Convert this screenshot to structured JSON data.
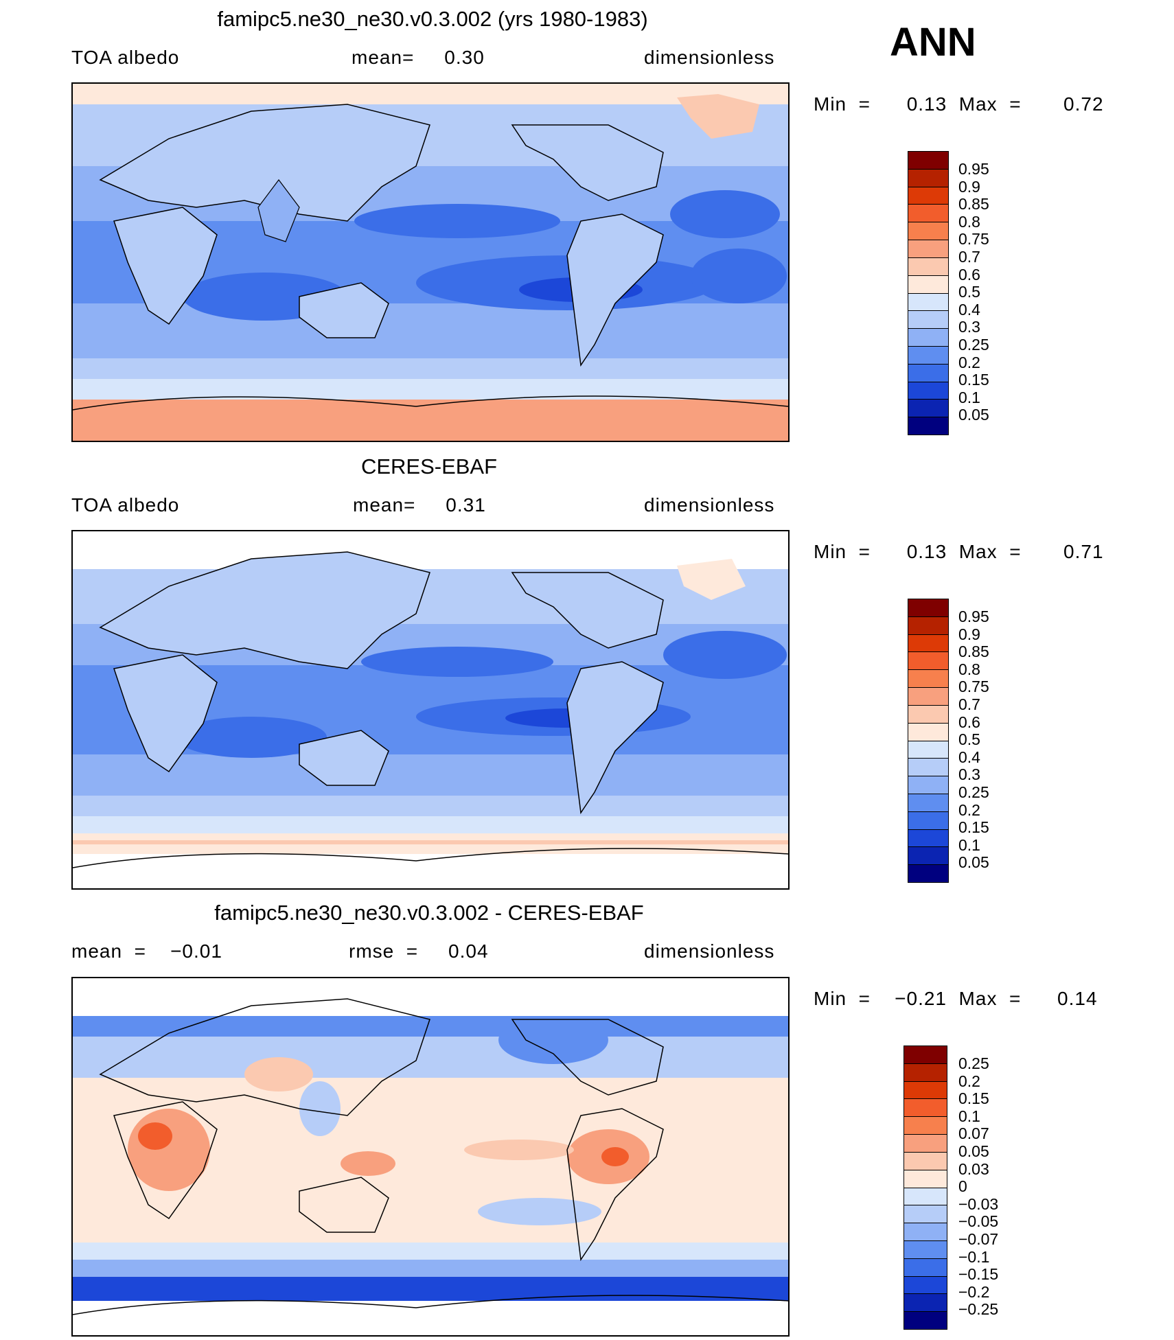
{
  "panel_label": "ANN",
  "panels": [
    {
      "title": "famipc5.ne30_ne30.v0.3.002 (yrs 1980-1983)",
      "left": "TOA  albedo",
      "mid": "mean=     0.30",
      "right": "dimensionless",
      "stats": "Min  =      0.13  Max  =       0.72",
      "levels": [
        "0.95",
        "0.9",
        "0.85",
        "0.8",
        "0.75",
        "0.7",
        "0.6",
        "0.5",
        "0.4",
        "0.3",
        "0.25",
        "0.2",
        "0.15",
        "0.1",
        "0.05"
      ],
      "colors": [
        "#7f0000",
        "#b52200",
        "#dd3a06",
        "#f25d2c",
        "#f7804d",
        "#f8a07e",
        "#fbc9b0",
        "#fee9db",
        "#d7e6fb",
        "#b6cdf8",
        "#8fb1f5",
        "#5f8ef0",
        "#3b6ee8",
        "#1c47d8",
        "#0b24b2",
        "#00007f"
      ]
    },
    {
      "title": "CERES-EBAF",
      "left": "TOA  albedo",
      "mid": "mean=     0.31",
      "right": "dimensionless",
      "stats": "Min  =      0.13  Max  =       0.71",
      "levels": [
        "0.95",
        "0.9",
        "0.85",
        "0.8",
        "0.75",
        "0.7",
        "0.6",
        "0.5",
        "0.4",
        "0.3",
        "0.25",
        "0.2",
        "0.15",
        "0.1",
        "0.05"
      ],
      "colors": [
        "#7f0000",
        "#b52200",
        "#dd3a06",
        "#f25d2c",
        "#f7804d",
        "#f8a07e",
        "#fbc9b0",
        "#fee9db",
        "#d7e6fb",
        "#b6cdf8",
        "#8fb1f5",
        "#5f8ef0",
        "#3b6ee8",
        "#1c47d8",
        "#0b24b2",
        "#00007f"
      ]
    },
    {
      "title": "famipc5.ne30_ne30.v0.3.002 - CERES-EBAF",
      "left": "mean  =    −0.01",
      "mid": "rmse  =     0.04",
      "right": "dimensionless",
      "stats": "Min  =    −0.21  Max  =      0.14",
      "levels": [
        "0.25",
        "0.2",
        "0.15",
        "0.1",
        "0.07",
        "0.05",
        "0.03",
        "0",
        "−0.03",
        "−0.05",
        "−0.07",
        "−0.1",
        "−0.15",
        "−0.2",
        "−0.25"
      ],
      "colors": [
        "#7f0000",
        "#b52200",
        "#dd3a06",
        "#f25d2c",
        "#f7804d",
        "#f8a07e",
        "#fbc9b0",
        "#fee9db",
        "#d7e6fb",
        "#b6cdf8",
        "#8fb1f5",
        "#5f8ef0",
        "#3b6ee8",
        "#1c47d8",
        "#0b24b2",
        "#00007f"
      ]
    }
  ]
}
